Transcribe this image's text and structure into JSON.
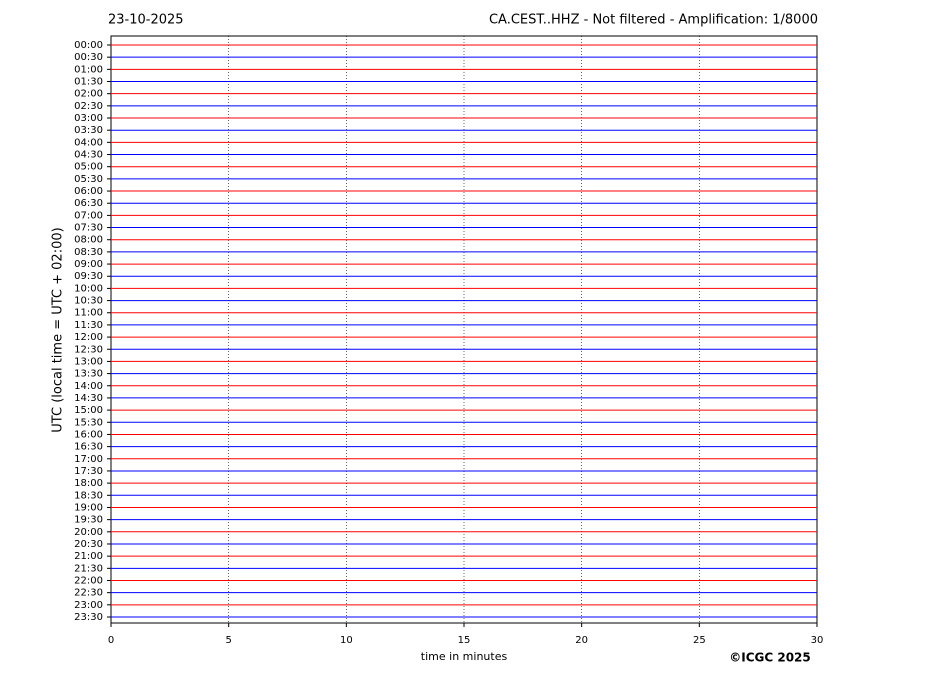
{
  "chart_data": {
    "type": "helicorder",
    "title_left": "23-10-2025",
    "title_right": "CA.CEST..HHZ - Not filtered - Amplification: 1/8000",
    "y_label": "UTC (local time = UTC + 02:00)",
    "x_label": "time in minutes",
    "copyright": "©ICGC 2025",
    "categories": [
      "00:00",
      "00:30",
      "01:00",
      "01:30",
      "02:00",
      "02:30",
      "03:00",
      "03:30",
      "04:00",
      "04:30",
      "05:00",
      "05:30",
      "06:00",
      "06:30",
      "07:00",
      "07:30",
      "08:00",
      "08:30",
      "09:00",
      "09:30",
      "10:00",
      "10:30",
      "11:00",
      "11:30",
      "12:00",
      "12:30",
      "13:00",
      "13:30",
      "14:00",
      "14:30",
      "15:00",
      "15:30",
      "16:00",
      "16:30",
      "17:00",
      "17:30",
      "18:00",
      "18:30",
      "19:00",
      "19:30",
      "20:00",
      "20:30",
      "21:00",
      "21:30",
      "22:00",
      "22:30",
      "23:00",
      "23:30"
    ],
    "colors": [
      "#ff0000",
      "#0000ff"
    ],
    "xlim": [
      0,
      30
    ],
    "xticks": [
      0,
      5,
      10,
      15,
      20,
      25,
      30
    ],
    "grid": true
  }
}
